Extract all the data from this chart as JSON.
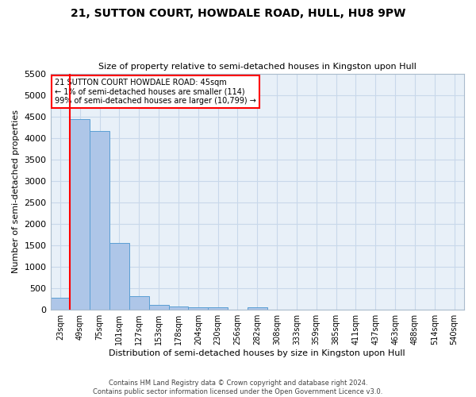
{
  "title": "21, SUTTON COURT, HOWDALE ROAD, HULL, HU8 9PW",
  "subtitle": "Size of property relative to semi-detached houses in Kingston upon Hull",
  "xlabel": "Distribution of semi-detached houses by size in Kingston upon Hull",
  "ylabel": "Number of semi-detached properties",
  "footer": "Contains HM Land Registry data © Crown copyright and database right 2024.\nContains public sector information licensed under the Open Government Licence v3.0.",
  "bar_labels": [
    "23sqm",
    "49sqm",
    "75sqm",
    "101sqm",
    "127sqm",
    "153sqm",
    "178sqm",
    "204sqm",
    "230sqm",
    "256sqm",
    "282sqm",
    "308sqm",
    "333sqm",
    "359sqm",
    "385sqm",
    "411sqm",
    "437sqm",
    "463sqm",
    "488sqm",
    "514sqm",
    "540sqm"
  ],
  "bar_values": [
    280,
    4430,
    4160,
    1560,
    320,
    120,
    80,
    65,
    60,
    0,
    60,
    0,
    0,
    0,
    0,
    0,
    0,
    0,
    0,
    0,
    0
  ],
  "bar_color": "#aec6e8",
  "bar_edge_color": "#5a9fd4",
  "grid_color": "#c8d8ea",
  "bg_color": "#e8f0f8",
  "property_label": "21 SUTTON COURT HOWDALE ROAD: 45sqm",
  "annotation_line1": "← 1% of semi-detached houses are smaller (114)",
  "annotation_line2": "99% of semi-detached houses are larger (10,799) →",
  "ylim": [
    0,
    5500
  ],
  "yticks": [
    0,
    500,
    1000,
    1500,
    2000,
    2500,
    3000,
    3500,
    4000,
    4500,
    5000,
    5500
  ],
  "red_line_x": 0.5
}
